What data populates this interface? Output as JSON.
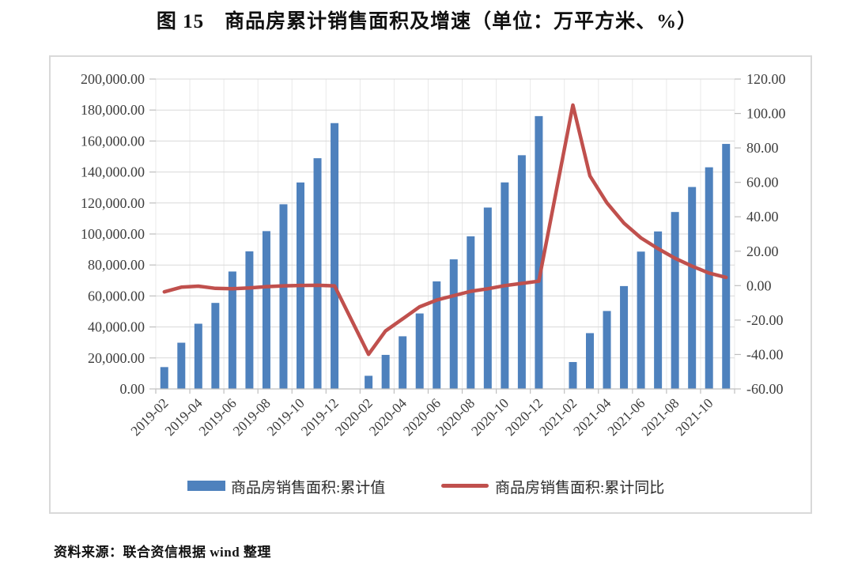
{
  "page": {
    "title": "图 15　商品房累计销售面积及增速（单位：万平方米、%）",
    "source_note": "资料来源：联合资信根据 wind 整理"
  },
  "chart_data": {
    "type": "bar+line combo",
    "title": "图 15　商品房累计销售面积及增速（单位：万平方米、%）",
    "unit": "万平方米、%",
    "grid": true,
    "legend_position": "bottom",
    "categories": [
      "2019-02",
      "2019-03",
      "2019-04",
      "2019-05",
      "2019-06",
      "2019-07",
      "2019-08",
      "2019-09",
      "2019-10",
      "2019-11",
      "2019-12",
      "2020-01",
      "2020-02",
      "2020-03",
      "2020-04",
      "2020-05",
      "2020-06",
      "2020-07",
      "2020-08",
      "2020-09",
      "2020-10",
      "2020-11",
      "2020-12",
      "2021-01",
      "2021-02",
      "2021-03",
      "2021-04",
      "2021-05",
      "2021-06",
      "2021-07",
      "2021-08",
      "2021-09",
      "2021-10",
      "2021-11"
    ],
    "x_tick_labels": [
      "2019-02",
      "2019-04",
      "2019-06",
      "2019-08",
      "2019-10",
      "2019-12",
      "2020-02",
      "2020-04",
      "2020-06",
      "2020-08",
      "2020-10",
      "2020-12",
      "2021-02",
      "2021-04",
      "2021-06",
      "2021-08",
      "2021-10"
    ],
    "series": [
      {
        "name": "商品房销售面积:累计值",
        "type": "bar",
        "axis": "left",
        "color": "#4e81bd",
        "values": [
          14102,
          29829,
          42085,
          55518,
          75786,
          88783,
          101849,
          119179,
          133251,
          148905,
          171558,
          null,
          8475,
          21978,
          33973,
          48703,
          69404,
          83631,
          98486,
          117073,
          133294,
          150834,
          176086,
          null,
          17363,
          36007,
          50305,
          66383,
          88635,
          101648,
          114193,
          130332,
          143041,
          158131
        ]
      },
      {
        "name": "商品房销售面积:累计同比",
        "type": "line",
        "axis": "right",
        "color": "#c0504d",
        "values": [
          -3.6,
          -0.9,
          -0.3,
          -1.6,
          -1.8,
          -1.3,
          -0.6,
          -0.1,
          0.1,
          0.2,
          -0.1,
          null,
          -39.9,
          -26.3,
          -19.3,
          -12.3,
          -8.4,
          -5.8,
          -3.3,
          -1.8,
          0.0,
          1.3,
          2.6,
          null,
          104.9,
          63.8,
          48.1,
          36.3,
          27.7,
          21.5,
          15.9,
          11.3,
          7.3,
          4.8
        ]
      }
    ],
    "left_axis": {
      "min": 0,
      "max": 200000,
      "step": 20000,
      "tick_labels": [
        "200,000.00",
        "180,000.00",
        "160,000.00",
        "140,000.00",
        "120,000.00",
        "100,000.00",
        "80,000.00",
        "60,000.00",
        "40,000.00",
        "20,000.00",
        "0.00"
      ]
    },
    "right_axis": {
      "min": -60,
      "max": 120,
      "step": 20,
      "tick_labels": [
        "120.00",
        "100.00",
        "80.00",
        "60.00",
        "40.00",
        "20.00",
        "0.00",
        "-20.00",
        "-40.00",
        "-60.00"
      ]
    },
    "colors": {
      "bar": "#4e81bd",
      "line": "#c0504d",
      "gridline": "#d9d9d9",
      "vertical_gridline": "#e9e9e9",
      "axis_tick": "#bfbfbf",
      "axis_text": "#3d3d3d",
      "frame_border": "#d9d9d9"
    }
  },
  "legend": {
    "items": [
      {
        "label": "商品房销售面积:累计值",
        "marker": "bar",
        "color": "#4e81bd"
      },
      {
        "label": "商品房销售面积:累计同比",
        "marker": "line",
        "color": "#c0504d"
      }
    ]
  }
}
